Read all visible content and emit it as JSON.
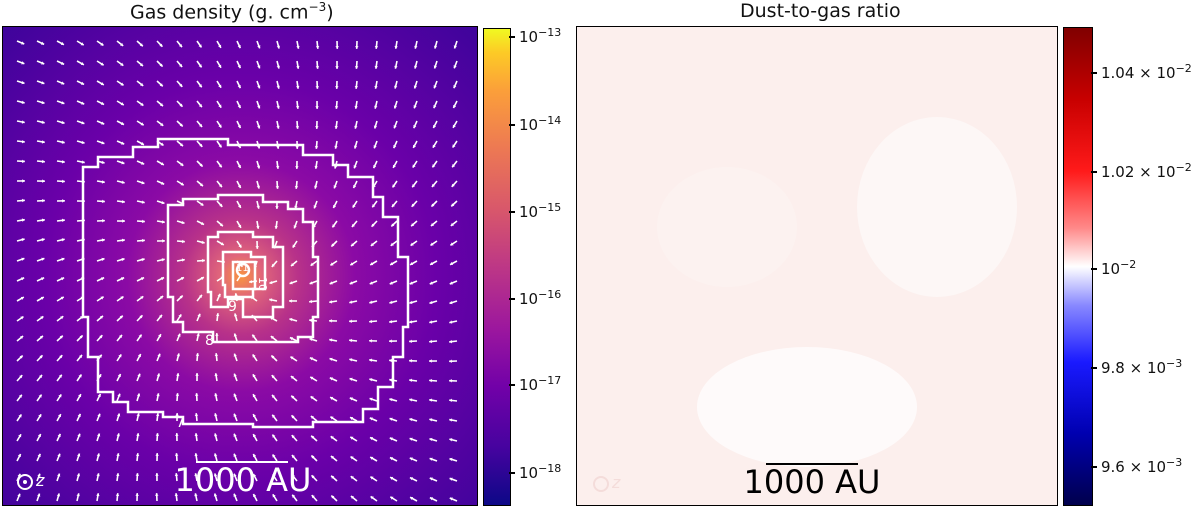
{
  "left_panel": {
    "title": "Gas density (g. cm",
    "title_exp": "−3",
    "title_close": ")",
    "colorbar_ticks": [
      {
        "base": "10",
        "exp": "−13"
      },
      {
        "base": "10",
        "exp": "−14"
      },
      {
        "base": "10",
        "exp": "−15"
      },
      {
        "base": "10",
        "exp": "−16"
      },
      {
        "base": "10",
        "exp": "−17"
      },
      {
        "base": "10",
        "exp": "−18"
      }
    ],
    "colormap": "plasma",
    "contour_labels": [
      "7",
      "8",
      "9",
      "10",
      "11"
    ],
    "scale_label": "1000 AU",
    "axis_indicator": "z"
  },
  "right_panel": {
    "title": "Dust-to-gas ratio",
    "colorbar_ticks": [
      {
        "base": "1.04 × 10",
        "exp": "−2"
      },
      {
        "base": "1.02 × 10",
        "exp": "−2"
      },
      {
        "base": "10",
        "exp": "−2"
      },
      {
        "base": "9.8 × 10",
        "exp": "−3"
      },
      {
        "base": "9.6 × 10",
        "exp": "−3"
      }
    ],
    "colormap": "seismic",
    "scale_label": "1000 AU",
    "axis_indicator": "z"
  },
  "chart_data": [
    {
      "type": "heatmap",
      "title": "Gas density (g. cm^-3)",
      "colorbar": {
        "scale": "log",
        "range": [
          4e-19,
          1.2e-13
        ],
        "ticks": [
          1e-13,
          1e-14,
          1e-15,
          1e-16,
          1e-17,
          1e-18
        ]
      },
      "contours": [
        7,
        8,
        9,
        10,
        11
      ],
      "vector_field": true,
      "scale_bar": "1000 AU"
    },
    {
      "type": "heatmap",
      "title": "Dust-to-gas ratio",
      "colorbar": {
        "scale": "linear",
        "range": [
          0.00955,
          0.0105
        ],
        "ticks": [
          0.0104,
          0.0102,
          0.01,
          0.0098,
          0.0096
        ]
      },
      "uniform_value": 0.01,
      "scale_bar": "1000 AU"
    }
  ]
}
